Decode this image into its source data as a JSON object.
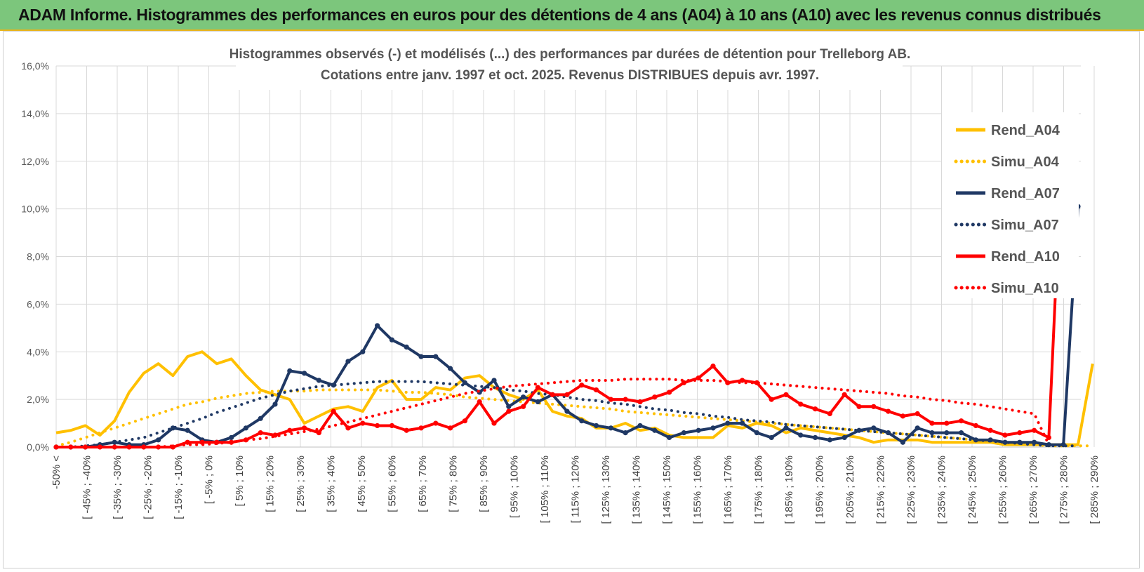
{
  "banner": {
    "title": "ADAM Informe. Histogrammes des performances en euros pour des détentions de 4 ans (A04) à 10 ans (A10) avec les revenus connus distribués"
  },
  "chart_data": {
    "type": "line",
    "title_lines": [
      "Histogrammes observés (-) et modélisés (...) des performances par durées de détention pour Trelleborg AB.",
      "Cotations entre janv. 1997 et oct. 2025. Revenus DISTRIBUES depuis avr. 1997."
    ],
    "ylim": [
      0,
      16
    ],
    "y_ticks": [
      "0,0%",
      "2,0%",
      "4,0%",
      "6,0%",
      "8,0%",
      "10,0%",
      "12,0%",
      "14,0%",
      "16,0%"
    ],
    "x_tick_labels": [
      "-50% <",
      "[ -45% ; -40%",
      "[ -35% ; -30%",
      "[ -25% ; -20%",
      "[ -15% ; -10%",
      "[ -5% ; 0%",
      "[ 5% ; 10%",
      "[ 15% ; 20%",
      "[ 25% ; 30%",
      "[ 35% ; 40%",
      "[ 45% ; 50%",
      "[ 55% ; 60%",
      "[ 65% ; 70%",
      "[ 75% ; 80%",
      "[ 85% ; 90%",
      "[ 95% ; 100%",
      "[ 105% ; 110%",
      "[ 115% ; 120%",
      "[ 125% ; 130%",
      "[ 135% ; 140%",
      "[ 145% ; 150%",
      "[ 155% ; 160%",
      "[ 165% ; 170%",
      "[ 175% ; 180%",
      "[ 185% ; 190%",
      "[ 195% ; 200%",
      "[ 205% ; 210%",
      "[ 215% ; 220%",
      "[ 225% ; 230%",
      "[ 235% ; 240%",
      "[ 245% ; 250%",
      "[ 255% ; 260%",
      "[ 265% ; 270%",
      "[ 275% ; 280%",
      "[ 285% ; 290%"
    ],
    "grid": true,
    "legend_position": "right",
    "series": [
      {
        "name": "Rend_A04",
        "style": "solid",
        "color": "#ffc000",
        "values": [
          0.6,
          0.7,
          0.9,
          0.5,
          1.1,
          2.3,
          3.1,
          3.5,
          3.0,
          3.8,
          4.0,
          3.5,
          3.7,
          3.0,
          2.4,
          2.2,
          2.0,
          1.0,
          1.3,
          1.6,
          1.7,
          1.5,
          2.5,
          2.8,
          2.0,
          2.0,
          2.5,
          2.4,
          2.9,
          3.0,
          2.5,
          2.2,
          2.0,
          2.4,
          1.5,
          1.3,
          1.2,
          0.8,
          0.8,
          1.0,
          0.7,
          0.8,
          0.5,
          0.4,
          0.4,
          0.4,
          0.9,
          0.8,
          1.0,
          0.9,
          0.6,
          0.8,
          0.7,
          0.6,
          0.5,
          0.4,
          0.2,
          0.3,
          0.3,
          0.3,
          0.2,
          0.2,
          0.2,
          0.2,
          0.2,
          0.1,
          0.1,
          0.1,
          0.1,
          0.1,
          0.1,
          3.5
        ]
      },
      {
        "name": "Simu_A04",
        "style": "dotted",
        "color": "#ffc000",
        "values": [
          0.05,
          0.2,
          0.4,
          0.6,
          0.8,
          1.0,
          1.2,
          1.4,
          1.6,
          1.8,
          1.9,
          2.05,
          2.15,
          2.25,
          2.3,
          2.35,
          2.35,
          2.35,
          2.4,
          2.4,
          2.4,
          2.4,
          2.4,
          2.35,
          2.3,
          2.3,
          2.25,
          2.2,
          2.1,
          2.05,
          2.0,
          1.95,
          1.9,
          1.85,
          1.8,
          1.75,
          1.7,
          1.65,
          1.6,
          1.5,
          1.45,
          1.4,
          1.35,
          1.3,
          1.25,
          1.2,
          1.15,
          1.1,
          1.05,
          1.0,
          0.95,
          0.9,
          0.85,
          0.8,
          0.75,
          0.7,
          0.65,
          0.6,
          0.55,
          0.5,
          0.45,
          0.4,
          0.35,
          0.3,
          0.25,
          0.2,
          0.15,
          0.1,
          0.05,
          0.05,
          0.05,
          0.05
        ]
      },
      {
        "name": "Rend_A07",
        "style": "solid",
        "color": "#1f3864",
        "values": [
          0.0,
          0.0,
          0.0,
          0.1,
          0.2,
          0.1,
          0.1,
          0.3,
          0.8,
          0.7,
          0.3,
          0.2,
          0.4,
          0.8,
          1.2,
          1.8,
          3.2,
          3.1,
          2.8,
          2.6,
          3.6,
          4.0,
          5.1,
          4.5,
          4.2,
          3.8,
          3.8,
          3.3,
          2.7,
          2.3,
          2.8,
          1.7,
          2.1,
          1.9,
          2.2,
          1.5,
          1.1,
          0.9,
          0.8,
          0.6,
          0.9,
          0.7,
          0.4,
          0.6,
          0.7,
          0.8,
          1.0,
          1.0,
          0.6,
          0.4,
          0.8,
          0.5,
          0.4,
          0.3,
          0.4,
          0.7,
          0.8,
          0.6,
          0.2,
          0.8,
          0.6,
          0.6,
          0.6,
          0.3,
          0.3,
          0.2,
          0.2,
          0.2,
          0.1,
          0.1,
          10.1
        ]
      },
      {
        "name": "Simu_A07",
        "style": "dotted",
        "color": "#1f3864",
        "values": [
          0.0,
          0.0,
          0.05,
          0.1,
          0.2,
          0.3,
          0.4,
          0.6,
          0.8,
          1.0,
          1.2,
          1.45,
          1.65,
          1.85,
          2.05,
          2.2,
          2.35,
          2.45,
          2.55,
          2.6,
          2.65,
          2.7,
          2.75,
          2.75,
          2.75,
          2.75,
          2.7,
          2.65,
          2.6,
          2.55,
          2.5,
          2.4,
          2.35,
          2.25,
          2.2,
          2.1,
          2.0,
          1.95,
          1.85,
          1.8,
          1.7,
          1.6,
          1.55,
          1.45,
          1.4,
          1.3,
          1.25,
          1.15,
          1.1,
          1.05,
          0.95,
          0.9,
          0.85,
          0.8,
          0.75,
          0.7,
          0.65,
          0.6,
          0.55,
          0.5,
          0.45,
          0.4,
          0.35,
          0.3,
          0.25,
          0.2,
          0.15,
          0.1,
          0.05,
          0.05,
          0.05
        ]
      },
      {
        "name": "Rend_A10",
        "style": "solid",
        "color": "#ff0000",
        "values": [
          0.0,
          0.0,
          0.0,
          0.0,
          0.0,
          0.0,
          0.0,
          0.0,
          0.0,
          0.2,
          0.2,
          0.2,
          0.2,
          0.3,
          0.6,
          0.5,
          0.7,
          0.8,
          0.6,
          1.5,
          0.8,
          1.0,
          0.9,
          0.9,
          0.7,
          0.8,
          1.0,
          0.8,
          1.1,
          1.9,
          1.0,
          1.5,
          1.7,
          2.5,
          2.2,
          2.2,
          2.6,
          2.4,
          2.0,
          2.0,
          1.9,
          2.1,
          2.3,
          2.7,
          2.9,
          3.4,
          2.7,
          2.8,
          2.7,
          2.0,
          2.2,
          1.8,
          1.6,
          1.4,
          2.2,
          1.7,
          1.7,
          1.5,
          1.3,
          1.4,
          1.0,
          1.0,
          1.1,
          0.9,
          0.7,
          0.5,
          0.6,
          0.7,
          0.4,
          13.8
        ]
      },
      {
        "name": "Simu_A10",
        "style": "dotted",
        "color": "#ff0000",
        "values": [
          0.0,
          0.0,
          0.0,
          0.0,
          0.0,
          0.0,
          0.0,
          0.0,
          0.05,
          0.1,
          0.1,
          0.15,
          0.2,
          0.3,
          0.35,
          0.45,
          0.55,
          0.65,
          0.75,
          0.9,
          1.05,
          1.2,
          1.35,
          1.5,
          1.65,
          1.8,
          1.95,
          2.1,
          2.25,
          2.35,
          2.45,
          2.55,
          2.6,
          2.65,
          2.7,
          2.75,
          2.8,
          2.8,
          2.8,
          2.85,
          2.85,
          2.85,
          2.85,
          2.8,
          2.8,
          2.8,
          2.75,
          2.7,
          2.7,
          2.65,
          2.6,
          2.55,
          2.5,
          2.45,
          2.4,
          2.35,
          2.3,
          2.25,
          2.15,
          2.1,
          2.0,
          1.95,
          1.85,
          1.8,
          1.7,
          1.6,
          1.5,
          1.4,
          0.1
        ]
      }
    ]
  }
}
